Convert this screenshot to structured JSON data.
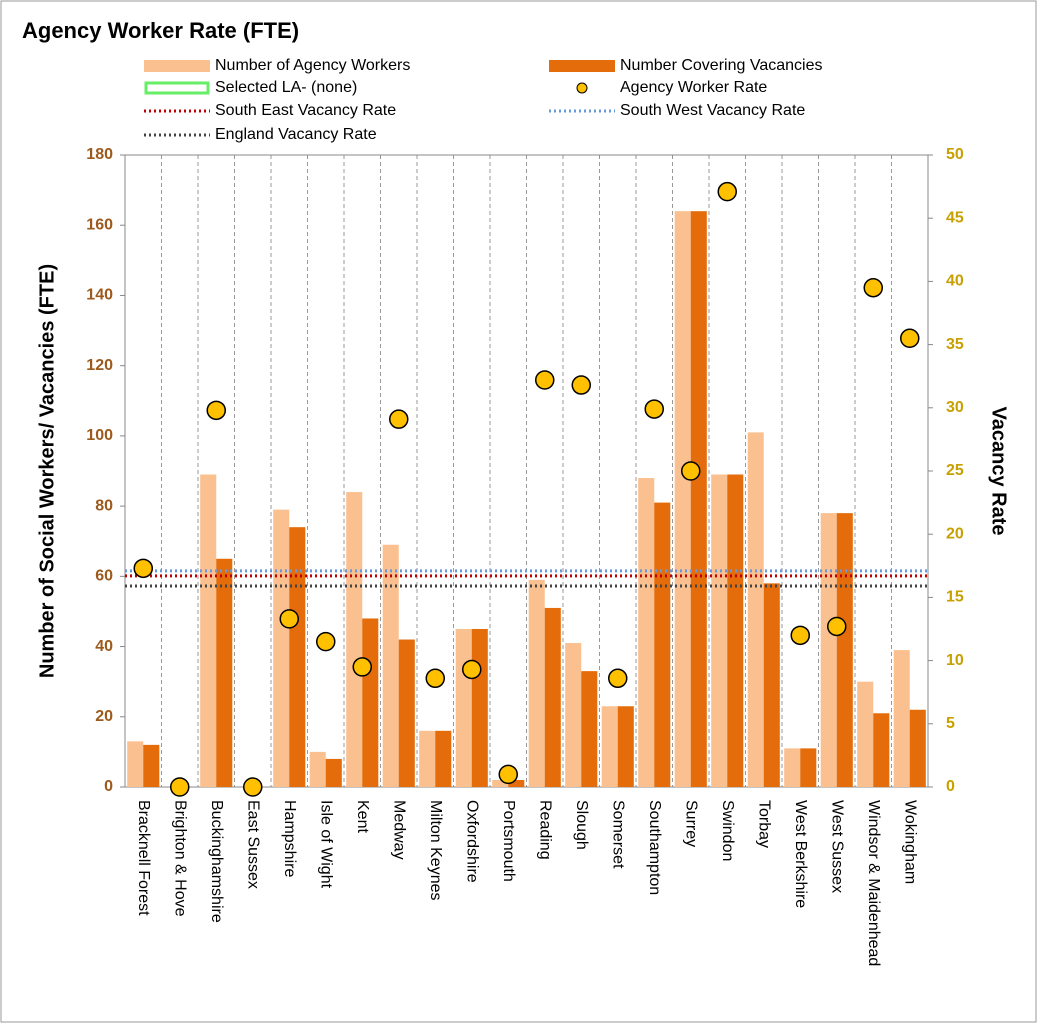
{
  "chart_data": {
    "type": "bar",
    "title": "Agency Worker Rate (FTE)",
    "y_label": "Number of Social Workers/ Vacancies (FTE)",
    "y2_label": "Vacancy Rate",
    "categories": [
      "Bracknell Forest",
      "Brighton & Hove",
      "Buckinghamshire",
      "East Sussex",
      "Hampshire",
      "Isle of Wight",
      "Kent",
      "Medway",
      "Milton Keynes",
      "Oxfordshire",
      "Portsmouth",
      "Reading",
      "Slough",
      "Somerset",
      "Southampton",
      "Surrey",
      "Swindon",
      "Torbay",
      "West Berkshire",
      "West Sussex",
      "Windsor & Maidenhead",
      "Wokingham"
    ],
    "series": [
      {
        "name": "Number of Agency Workers",
        "type": "bar",
        "color": "#fac090",
        "axis": "y",
        "values": [
          13,
          0,
          89,
          0,
          79,
          10,
          84,
          69,
          16,
          45,
          2,
          59,
          41,
          23,
          88,
          164,
          89,
          101,
          11,
          78,
          30,
          39
        ]
      },
      {
        "name": "Number  Covering Vacancies",
        "type": "bar",
        "color": "#e46c0a",
        "axis": "y",
        "values": [
          12,
          0,
          65,
          0,
          74,
          8,
          48,
          42,
          16,
          45,
          2,
          51,
          33,
          23,
          81,
          164,
          89,
          58,
          11,
          78,
          21,
          22
        ]
      },
      {
        "name": "Agency Worker Rate",
        "type": "scatter",
        "color": "#ffc000",
        "axis": "y2",
        "values": [
          17.3,
          0,
          29.8,
          0,
          13.3,
          11.5,
          9.5,
          29.1,
          8.6,
          9.3,
          1.0,
          32.2,
          31.8,
          8.6,
          29.9,
          25.0,
          47.1,
          null,
          12.0,
          12.7,
          39.5,
          35.5
        ]
      }
    ],
    "selected_la": {
      "name": "Selected LA- (none)",
      "color": "#66ee66"
    },
    "reference_lines": [
      {
        "name": "South East Vacancy Rate",
        "color": "#c00000",
        "axis": "y2",
        "value": 16.7
      },
      {
        "name": "South West Vacancy Rate",
        "color": "#6699dd",
        "axis": "y2",
        "value": 17.1
      },
      {
        "name": "England Vacancy Rate",
        "color": "#444444",
        "axis": "y2",
        "value": 15.9
      }
    ],
    "ylim": [
      0,
      180
    ],
    "yticks": [
      0,
      20,
      40,
      60,
      80,
      100,
      120,
      140,
      160,
      180
    ],
    "y2lim": [
      0,
      50
    ],
    "y2ticks": [
      0,
      5,
      10,
      15,
      20,
      25,
      30,
      35,
      40,
      45,
      50
    ],
    "grid": true
  }
}
